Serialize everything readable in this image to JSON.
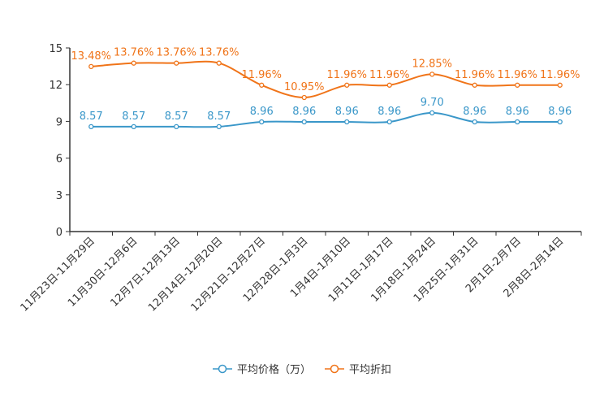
{
  "chart_data": {
    "type": "line",
    "categories": [
      "11月23日-11月29日",
      "11月30日-12月6日",
      "12月7日-12月13日",
      "12月14日-12月20日",
      "12月21日-12月27日",
      "12月28日-1月3日",
      "1月4日-1月10日",
      "1月11日-1月17日",
      "1月18日-1月24日",
      "1月25日-1月31日",
      "2月1日-2月7日",
      "2月8日-2月14日"
    ],
    "ylim": [
      0,
      15
    ],
    "yticks": [
      0,
      3,
      6,
      9,
      12,
      15
    ],
    "series": [
      {
        "name": "平均价格（万）",
        "color": "#3a97c9",
        "values": [
          8.57,
          8.57,
          8.57,
          8.57,
          8.96,
          8.96,
          8.96,
          8.96,
          9.7,
          8.96,
          8.96,
          8.96
        ],
        "labels": [
          "8.57",
          "8.57",
          "8.57",
          "8.57",
          "8.96",
          "8.96",
          "8.96",
          "8.96",
          "9.70",
          "8.96",
          "8.96",
          "8.96"
        ]
      },
      {
        "name": "平均折扣",
        "color": "#f07419",
        "values": [
          13.48,
          13.76,
          13.76,
          13.76,
          11.96,
          10.95,
          11.96,
          11.96,
          12.85,
          11.96,
          11.96,
          11.96
        ],
        "labels": [
          "13.48%",
          "13.76%",
          "13.76%",
          "13.76%",
          "11.96%",
          "10.95%",
          "11.96%",
          "11.96%",
          "12.85%",
          "11.96%",
          "11.96%",
          "11.96%"
        ]
      }
    ],
    "legend_position": "bottom-center",
    "title": "",
    "xlabel": "",
    "ylabel": ""
  }
}
